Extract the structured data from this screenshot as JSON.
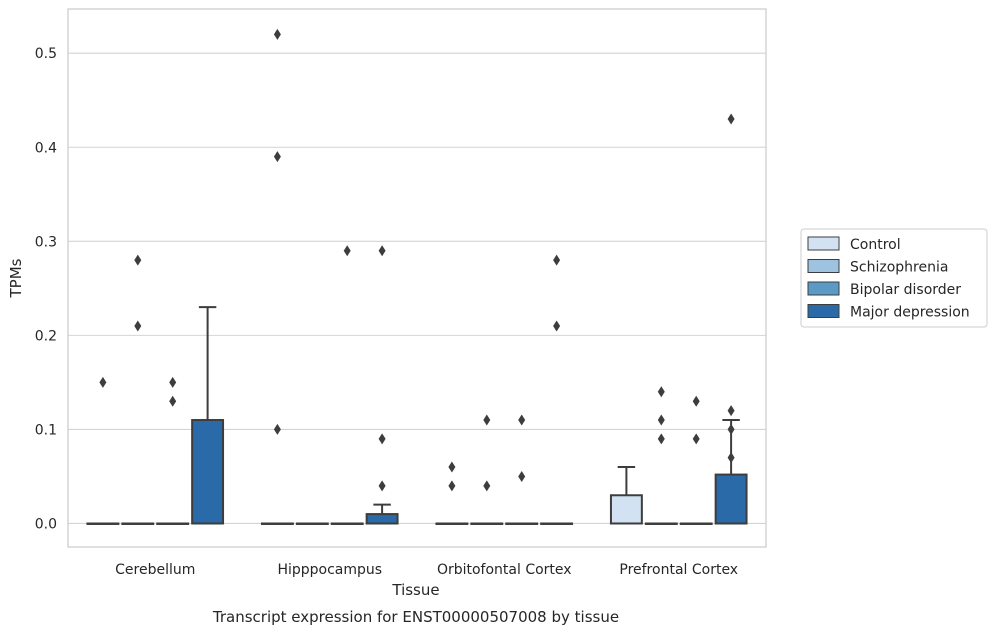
{
  "chart_data": {
    "type": "box",
    "title": "",
    "caption": "Transcript expression for ENST00000507008 by tissue",
    "xlabel": "Tissue",
    "ylabel": "TPMs",
    "ylim": [
      -0.025,
      0.547
    ],
    "yticks": [
      0.0,
      0.1,
      0.2,
      0.3,
      0.4,
      0.5
    ],
    "ytick_labels": [
      "0.0",
      "0.1",
      "0.2",
      "0.3",
      "0.4",
      "0.5"
    ],
    "grid": "horizontal",
    "legend_position": "right",
    "categories": [
      "Cerebellum",
      "Hipppocampus",
      "Orbitofontal Cortex",
      "Prefrontal Cortex"
    ],
    "series": [
      {
        "name": "Control",
        "color": "#d3e2f2",
        "boxes": [
          {
            "q1": 0,
            "median": 0,
            "q3": 0,
            "whisker_low": 0,
            "whisker_high": 0,
            "outliers": [
              0.15
            ]
          },
          {
            "q1": 0,
            "median": 0,
            "q3": 0,
            "whisker_low": 0,
            "whisker_high": 0,
            "outliers": [
              0.52,
              0.39,
              0.1
            ]
          },
          {
            "q1": 0,
            "median": 0,
            "q3": 0,
            "whisker_low": 0,
            "whisker_high": 0,
            "outliers": [
              0.06,
              0.04
            ]
          },
          {
            "q1": 0,
            "median": 0,
            "q3": 0.03,
            "whisker_low": 0,
            "whisker_high": 0.06,
            "outliers": []
          }
        ]
      },
      {
        "name": "Schizophrenia",
        "color": "#9dc3e0",
        "boxes": [
          {
            "q1": 0,
            "median": 0,
            "q3": 0,
            "whisker_low": 0,
            "whisker_high": 0,
            "outliers": [
              0.28,
              0.21
            ]
          },
          {
            "q1": 0,
            "median": 0,
            "q3": 0,
            "whisker_low": 0,
            "whisker_high": 0,
            "outliers": []
          },
          {
            "q1": 0,
            "median": 0,
            "q3": 0,
            "whisker_low": 0,
            "whisker_high": 0,
            "outliers": [
              0.11,
              0.04
            ]
          },
          {
            "q1": 0,
            "median": 0,
            "q3": 0,
            "whisker_low": 0,
            "whisker_high": 0,
            "outliers": [
              0.14,
              0.11,
              0.09
            ]
          }
        ]
      },
      {
        "name": "Bipolar disorder",
        "color": "#5b9ac7",
        "boxes": [
          {
            "q1": 0,
            "median": 0,
            "q3": 0,
            "whisker_low": 0,
            "whisker_high": 0,
            "outliers": [
              0.15,
              0.13
            ]
          },
          {
            "q1": 0,
            "median": 0,
            "q3": 0,
            "whisker_low": 0,
            "whisker_high": 0,
            "outliers": [
              0.29
            ]
          },
          {
            "q1": 0,
            "median": 0,
            "q3": 0,
            "whisker_low": 0,
            "whisker_high": 0,
            "outliers": [
              0.11,
              0.05
            ]
          },
          {
            "q1": 0,
            "median": 0,
            "q3": 0,
            "whisker_low": 0,
            "whisker_high": 0,
            "outliers": [
              0.13,
              0.09
            ]
          }
        ]
      },
      {
        "name": "Major depression",
        "color": "#2a6aa8",
        "boxes": [
          {
            "q1": 0,
            "median": 0,
            "q3": 0.11,
            "whisker_low": 0,
            "whisker_high": 0.23,
            "outliers": []
          },
          {
            "q1": 0,
            "median": 0,
            "q3": 0.01,
            "whisker_low": 0,
            "whisker_high": 0.02,
            "outliers": [
              0.29,
              0.09,
              0.04
            ]
          },
          {
            "q1": 0,
            "median": 0,
            "q3": 0,
            "whisker_low": 0,
            "whisker_high": 0,
            "outliers": [
              0.28,
              0.21
            ]
          },
          {
            "q1": 0,
            "median": 0,
            "q3": 0.052,
            "whisker_low": 0,
            "whisker_high": 0.11,
            "outliers": [
              0.43,
              0.12,
              0.1,
              0.07
            ]
          }
        ]
      }
    ]
  }
}
